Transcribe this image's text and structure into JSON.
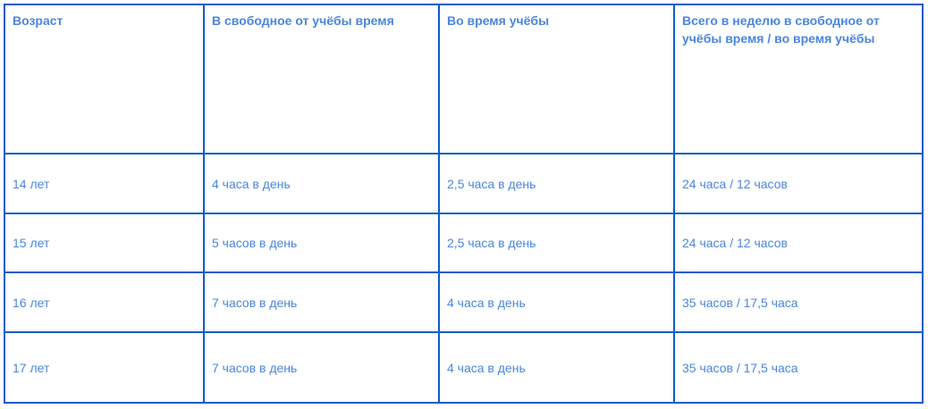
{
  "table": {
    "headers": [
      "Возраст",
      "В свободное от учёбы время",
      "Во время учёбы",
      "Всего в неделю в свободное от учёбы время / во время учёбы"
    ],
    "rows": [
      [
        "14 лет",
        "4 часа в день",
        "2,5 часа в день",
        "24 часа / 12 часов"
      ],
      [
        "15 лет",
        "5 часов в день",
        "2,5 часа в день",
        "24 часа / 12 часов"
      ],
      [
        "16 лет",
        "7 часов в день",
        "4 часа в день",
        "35 часов / 17,5 часа"
      ],
      [
        "17 лет",
        "7 часов в день",
        "4 часа в день",
        "35 часов / 17,5 часа"
      ]
    ]
  },
  "colors": {
    "border": "#0b5ccc",
    "text": "#4a86e0"
  }
}
